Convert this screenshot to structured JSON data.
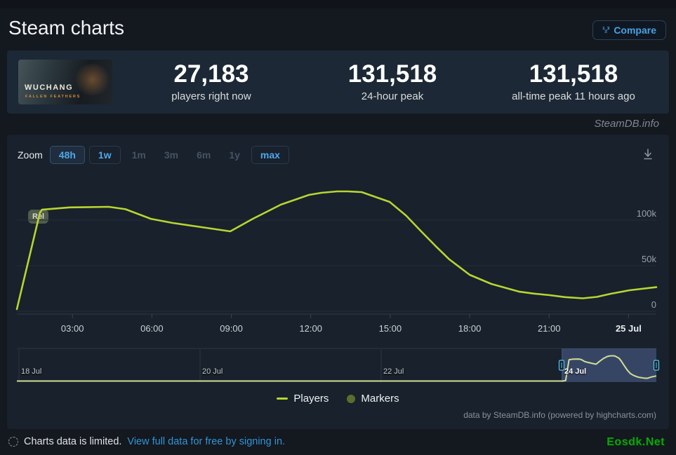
{
  "header": {
    "title": "Steam charts",
    "compare_label": "Compare"
  },
  "stats": {
    "game": {
      "name": "WUCHANG",
      "subtitle": "FALLEN FEATHERS"
    },
    "items": [
      {
        "value": "27,183",
        "label": "players right now"
      },
      {
        "value": "131,518",
        "label": "24-hour peak"
      },
      {
        "value": "131,518",
        "label": "all-time peak 11 hours ago"
      }
    ]
  },
  "brand": "SteamDB.info",
  "toolbar": {
    "zoom_label": "Zoom",
    "zoom_buttons": [
      {
        "label": "48h",
        "state": "active"
      },
      {
        "label": "1w",
        "state": "enabled"
      },
      {
        "label": "1m",
        "state": "disabled"
      },
      {
        "label": "3m",
        "state": "disabled"
      },
      {
        "label": "6m",
        "state": "disabled"
      },
      {
        "label": "1y",
        "state": "disabled"
      },
      {
        "label": "max",
        "state": "enabled"
      }
    ]
  },
  "chart_data": {
    "type": "line",
    "title": "",
    "series": [
      {
        "name": "Players",
        "color": "#b8d531",
        "points": [
          [
            0.9,
            2300
          ],
          [
            1.77,
            108000
          ],
          [
            1.85,
            111500
          ],
          [
            2.9,
            114000
          ],
          [
            4.37,
            114600
          ],
          [
            5.0,
            112000
          ],
          [
            5.96,
            101500
          ],
          [
            6.76,
            97000
          ],
          [
            8.08,
            91500
          ],
          [
            8.96,
            87700
          ],
          [
            9.81,
            101500
          ],
          [
            10.87,
            117000
          ],
          [
            11.93,
            127700
          ],
          [
            12.4,
            130000
          ],
          [
            12.99,
            131518
          ],
          [
            13.4,
            131518
          ],
          [
            13.92,
            130800
          ],
          [
            14.98,
            120000
          ],
          [
            15.6,
            105000
          ],
          [
            16.17,
            87700
          ],
          [
            16.7,
            72000
          ],
          [
            17.23,
            57000
          ],
          [
            18.0,
            40000
          ],
          [
            18.82,
            30000
          ],
          [
            19.88,
            21500
          ],
          [
            20.4,
            19500
          ],
          [
            21.02,
            17700
          ],
          [
            21.6,
            15500
          ],
          [
            22.27,
            14200
          ],
          [
            22.8,
            15800
          ],
          [
            23.33,
            19200
          ],
          [
            24.04,
            23100
          ],
          [
            25.05,
            26500
          ]
        ]
      }
    ],
    "x_unit": "hours since 24 Jul 00:00",
    "x_range": [
      0.9,
      25.05
    ],
    "ylim": [
      0,
      147000
    ],
    "grid": "horizontal",
    "legend_position": "bottom-center",
    "y_ticks": [
      {
        "v": 0,
        "label": "0"
      },
      {
        "v": 50000,
        "label": "50k"
      },
      {
        "v": 100000,
        "label": "100k"
      }
    ],
    "x_ticks": [
      {
        "t": 3,
        "label": "03:00"
      },
      {
        "t": 6,
        "label": "06:00"
      },
      {
        "t": 9,
        "label": "09:00"
      },
      {
        "t": 12,
        "label": "12:00"
      },
      {
        "t": 15,
        "label": "15:00"
      },
      {
        "t": 18,
        "label": "18:00"
      },
      {
        "t": 21,
        "label": "21:00"
      },
      {
        "t": 24,
        "label": "25 Jul",
        "strong": true
      }
    ],
    "release_marker": {
      "t": 1.77,
      "label": "Rel"
    },
    "legend": [
      {
        "label": "Players",
        "swatch": "line"
      },
      {
        "label": "Markers",
        "swatch": "circle"
      }
    ],
    "navigator": {
      "date_ticks": [
        {
          "day": 0,
          "label": "18 Jul"
        },
        {
          "day": 2,
          "label": "20 Jul"
        },
        {
          "day": 4,
          "label": "22 Jul"
        },
        {
          "day": 6,
          "label": "24 Jul",
          "selected": true
        }
      ]
    }
  },
  "credits": "data by SteamDB.info (powered by highcharts.com)",
  "footer": {
    "notice": "Charts data is limited.",
    "link": "View full data for free by signing in."
  },
  "site_watermark": "Eosdk.Net"
}
